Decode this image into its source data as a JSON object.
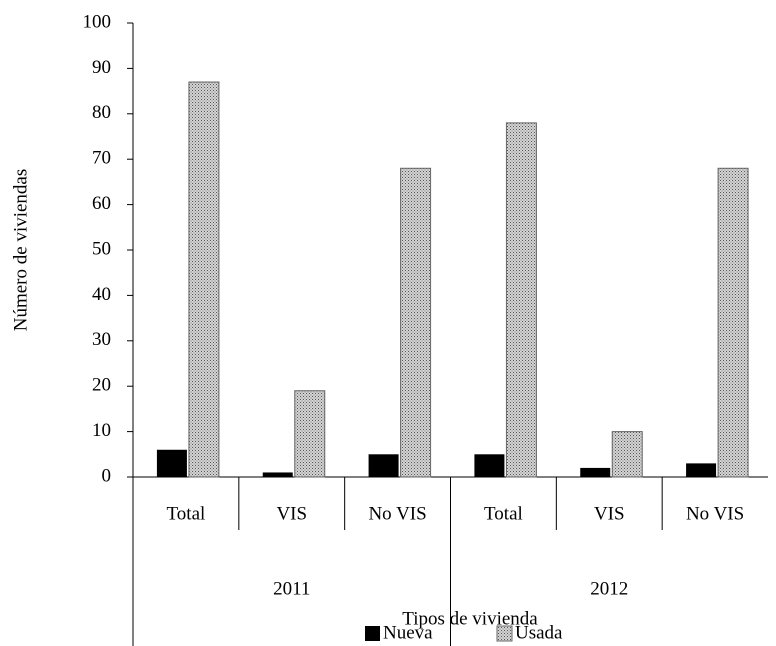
{
  "chart_data": {
    "type": "bar",
    "categories": [
      "Total",
      "VIS",
      "No VIS",
      "Total",
      "VIS",
      "No VIS"
    ],
    "groups": [
      "2011",
      "2012"
    ],
    "series": [
      {
        "name": "Nueva",
        "color": "#000000",
        "values": [
          6,
          1,
          5,
          5,
          2,
          3
        ]
      },
      {
        "name": "Usada",
        "color": "#d4d4d4",
        "pattern": "dotted",
        "values": [
          87,
          19,
          68,
          78,
          10,
          68
        ]
      }
    ],
    "xlabel": "Tipos de vivienda",
    "ylabel": "Número de viviendas",
    "ylim": [
      0,
      100
    ],
    "yticks": [
      0,
      10,
      20,
      30,
      40,
      50,
      60,
      70,
      80,
      90,
      100
    ],
    "legend": "bottom"
  }
}
